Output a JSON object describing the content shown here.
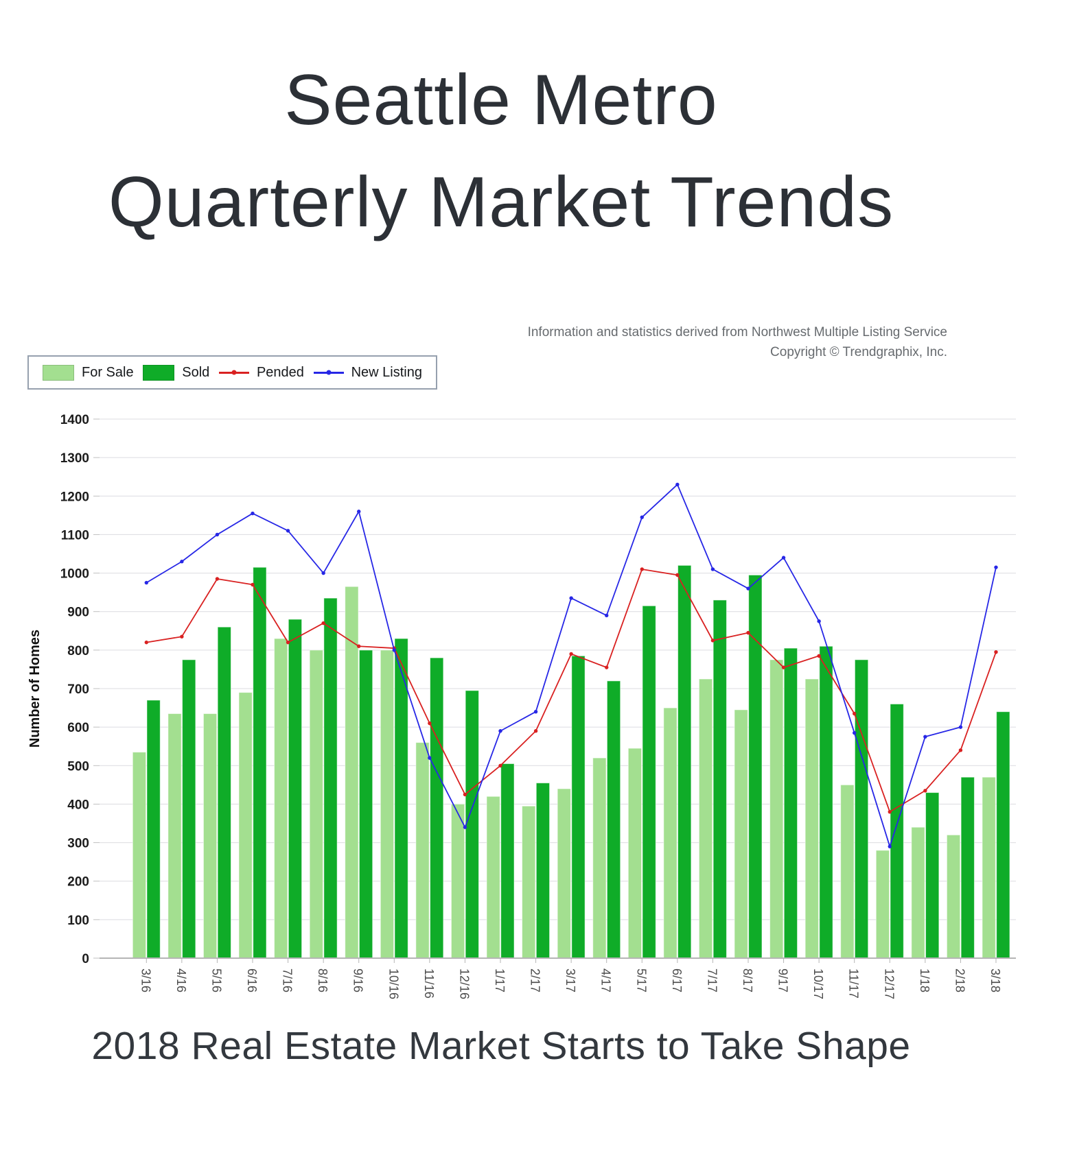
{
  "title": {
    "line1": "Seattle Metro",
    "line2": "Quarterly Market Trends"
  },
  "attribution": {
    "line1": "Information and statistics derived from Northwest Multiple Listing Service",
    "line2": "Copyright © Trendgraphix, Inc."
  },
  "caption": "2018 Real Estate Market Starts to Take Shape",
  "chart_data": {
    "type": "bar+line",
    "title": "",
    "xlabel": "",
    "ylabel": "Number of Homes",
    "ylim": [
      0,
      1400
    ],
    "ytick_step": 100,
    "grid": true,
    "legend_position": "top-left",
    "categories": [
      "3/16",
      "4/16",
      "5/16",
      "6/16",
      "7/16",
      "8/16",
      "9/16",
      "10/16",
      "11/16",
      "12/16",
      "1/17",
      "2/17",
      "3/17",
      "4/17",
      "5/17",
      "6/17",
      "7/17",
      "8/17",
      "9/17",
      "10/17",
      "11/17",
      "12/17",
      "1/18",
      "2/18",
      "3/18"
    ],
    "series": [
      {
        "name": "For Sale",
        "type": "bar",
        "color": "#A3DF90",
        "values": [
          535,
          635,
          635,
          690,
          830,
          800,
          965,
          800,
          560,
          400,
          420,
          395,
          440,
          520,
          545,
          650,
          725,
          645,
          775,
          725,
          450,
          280,
          340,
          320,
          470
        ]
      },
      {
        "name": "Sold",
        "type": "bar",
        "color": "#0FAC28",
        "values": [
          670,
          775,
          860,
          1015,
          880,
          935,
          800,
          830,
          780,
          695,
          505,
          455,
          785,
          720,
          915,
          1020,
          930,
          995,
          805,
          810,
          775,
          660,
          430,
          470,
          640
        ]
      },
      {
        "name": "Pended",
        "type": "line",
        "color": "#D92121",
        "values": [
          820,
          835,
          985,
          970,
          820,
          870,
          810,
          805,
          610,
          425,
          500,
          590,
          790,
          755,
          1010,
          995,
          825,
          845,
          755,
          785,
          635,
          380,
          435,
          540,
          795
        ]
      },
      {
        "name": "New Listing",
        "type": "line",
        "color": "#2727E6",
        "values": [
          975,
          1030,
          1100,
          1155,
          1110,
          1000,
          1160,
          800,
          520,
          340,
          590,
          640,
          935,
          890,
          1145,
          1230,
          1010,
          960,
          1040,
          875,
          585,
          290,
          575,
          600,
          1015
        ]
      }
    ]
  }
}
